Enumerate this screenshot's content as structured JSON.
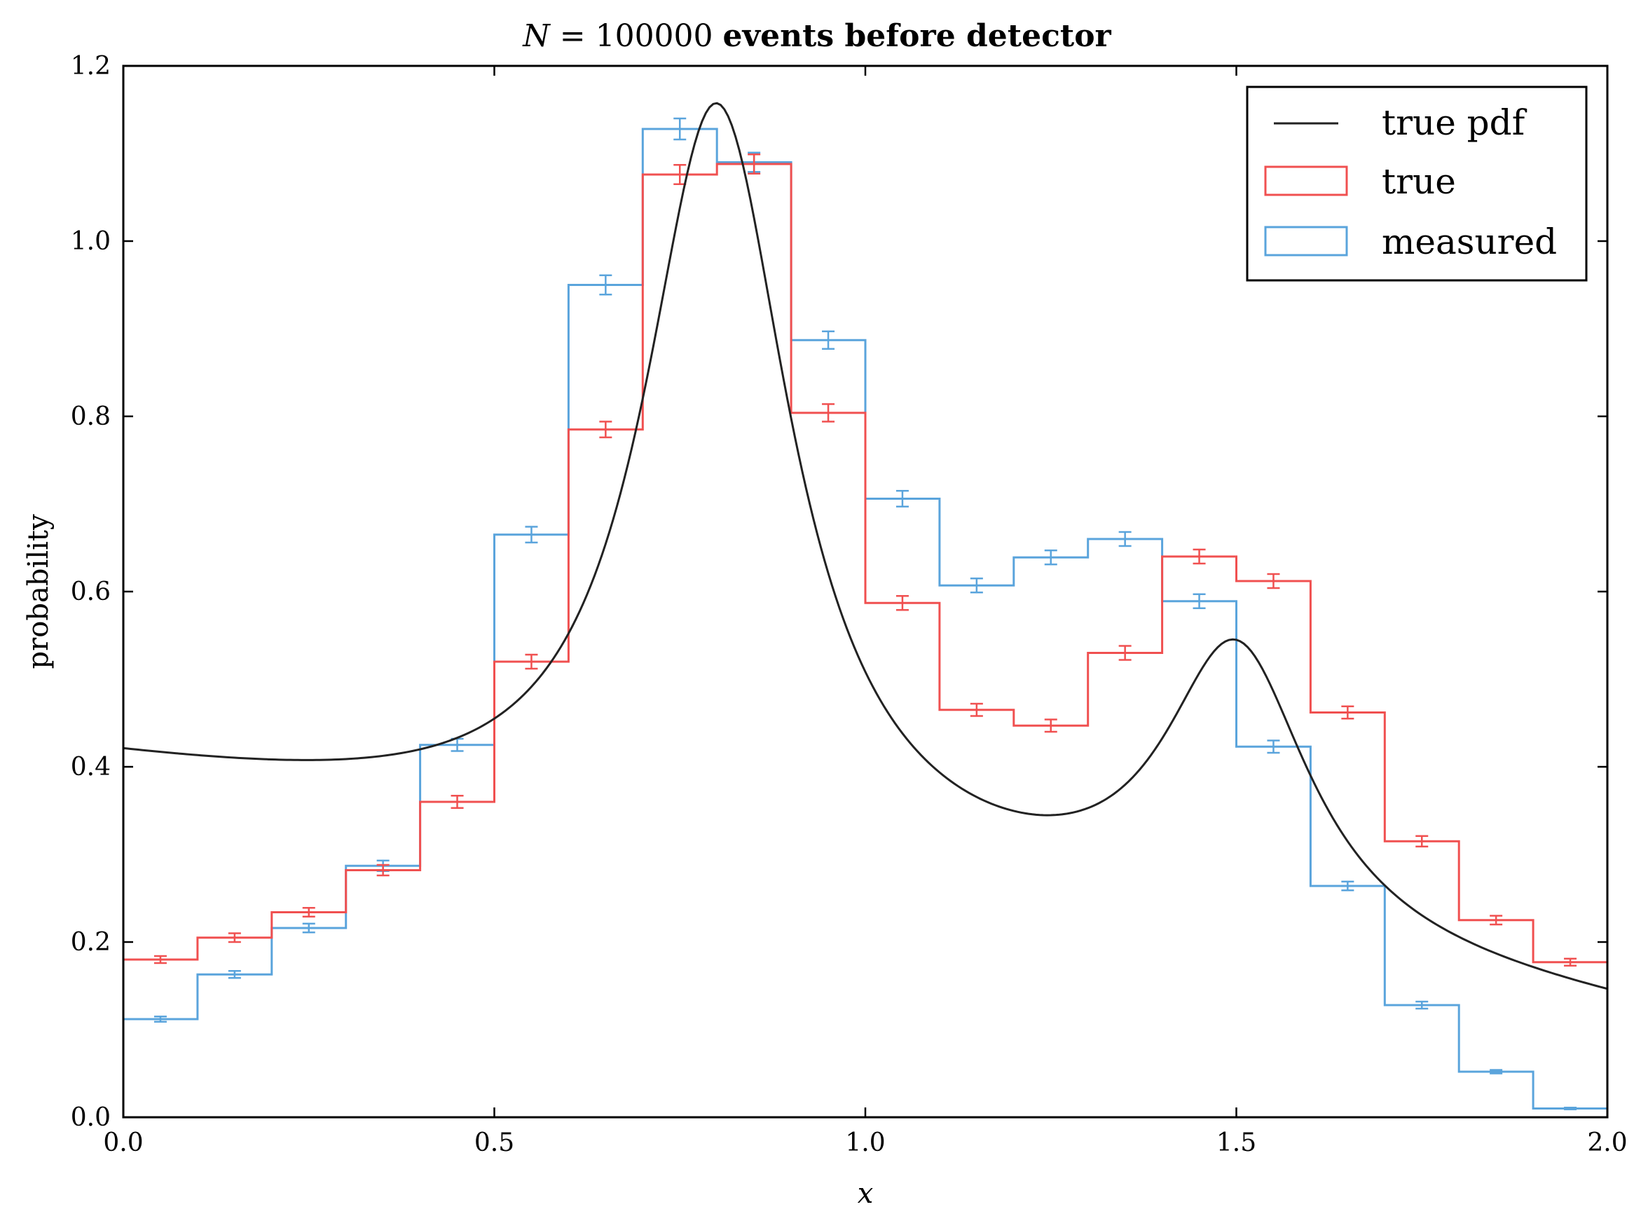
{
  "chart_data": {
    "type": "histogram-step",
    "title": {
      "prefix": "N",
      "equals": " = 100000 ",
      "suffix": "events before detector"
    },
    "xlabel": "x",
    "ylabel": "probability",
    "xlim": [
      0.0,
      2.0
    ],
    "ylim": [
      0.0,
      1.2
    ],
    "xticks": [
      0.0,
      0.5,
      1.0,
      1.5,
      2.0
    ],
    "xtick_labels": [
      "0.0",
      "0.5",
      "1.0",
      "1.5",
      "2.0"
    ],
    "yticks": [
      0.0,
      0.2,
      0.4,
      0.6,
      0.8,
      1.0,
      1.2
    ],
    "ytick_labels": [
      "0.0",
      "0.2",
      "0.4",
      "0.6",
      "0.8",
      "1.0",
      "1.2"
    ],
    "bin_edges": [
      0.0,
      0.1,
      0.2,
      0.3,
      0.4,
      0.5,
      0.6,
      0.7,
      0.8,
      0.9,
      1.0,
      1.1,
      1.2,
      1.3,
      1.4,
      1.5,
      1.6,
      1.7,
      1.8,
      1.9,
      2.0
    ],
    "legend_position": "upper right",
    "series": [
      {
        "name": "true pdf",
        "kind": "line",
        "color": "#222222",
        "model": {
          "background": {
            "a": 0.4,
            "b": -0.14
          },
          "peaks": [
            {
              "amp": 0.86,
              "center": 0.8,
              "width": 0.121
            },
            {
              "amp": 0.33,
              "center": 1.5,
              "width": 0.12
            }
          ]
        }
      },
      {
        "name": "true",
        "kind": "step",
        "color": "#f05050",
        "values": [
          0.18,
          0.205,
          0.234,
          0.282,
          0.36,
          0.52,
          0.785,
          1.076,
          1.088,
          0.804,
          0.587,
          0.465,
          0.447,
          0.53,
          0.64,
          0.612,
          0.462,
          0.315,
          0.225,
          0.177
        ],
        "errors": [
          0.004,
          0.005,
          0.005,
          0.006,
          0.007,
          0.008,
          0.009,
          0.011,
          0.011,
          0.01,
          0.008,
          0.007,
          0.007,
          0.008,
          0.008,
          0.008,
          0.007,
          0.006,
          0.005,
          0.004
        ]
      },
      {
        "name": "measured",
        "kind": "step",
        "color": "#5aa4dc",
        "values": [
          0.112,
          0.163,
          0.216,
          0.287,
          0.425,
          0.665,
          0.95,
          1.128,
          1.09,
          0.887,
          0.706,
          0.607,
          0.639,
          0.66,
          0.589,
          0.423,
          0.264,
          0.128,
          0.052,
          0.01
        ],
        "errors": [
          0.003,
          0.004,
          0.005,
          0.006,
          0.007,
          0.009,
          0.011,
          0.012,
          0.011,
          0.01,
          0.009,
          0.008,
          0.008,
          0.008,
          0.008,
          0.007,
          0.005,
          0.004,
          0.002,
          0.001
        ]
      }
    ]
  }
}
